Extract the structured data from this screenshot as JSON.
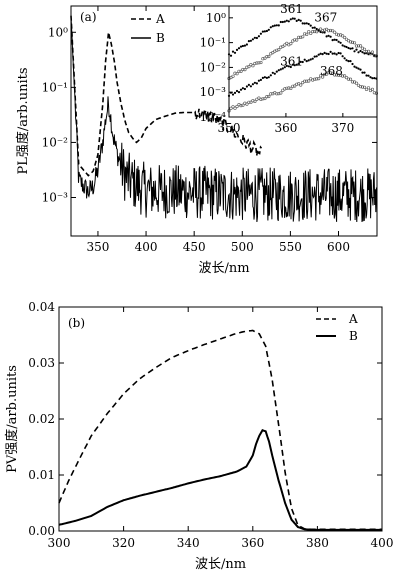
{
  "chart_data": [
    {
      "type": "line",
      "panel_label": "(a)",
      "xlabel": "波长/nm",
      "ylabel": "PL强度/arb.units",
      "xlim": [
        322,
        640
      ],
      "ylim": [
        0.0002,
        3
      ],
      "yscale": "log",
      "xticks": [
        350,
        400,
        450,
        500,
        550,
        600
      ],
      "yticks": [
        0.001,
        0.01,
        0.1,
        1
      ],
      "ytick_labels": [
        "10⁻³",
        "10⁻²",
        "10⁻¹",
        "10⁰"
      ],
      "legend_position": "top-left",
      "series": [
        {
          "name": "A",
          "style": "dashed",
          "x": [
            322,
            330,
            340,
            345,
            350,
            355,
            358,
            361,
            364,
            367,
            370,
            374,
            378,
            382,
            386,
            390,
            395,
            400,
            410,
            420,
            430,
            440,
            450,
            460,
            470,
            480,
            490,
            500,
            510,
            520
          ],
          "y": [
            2.0,
            0.004,
            0.0025,
            0.003,
            0.006,
            0.05,
            0.3,
            1.0,
            0.6,
            0.3,
            0.12,
            0.05,
            0.025,
            0.015,
            0.012,
            0.01,
            0.012,
            0.018,
            0.026,
            0.03,
            0.034,
            0.035,
            0.035,
            0.032,
            0.028,
            0.022,
            0.016,
            0.011,
            0.008,
            0.006
          ]
        },
        {
          "name": "B",
          "style": "solid-noisy",
          "x": [
            322,
            330,
            340,
            345,
            350,
            355,
            358,
            361,
            363,
            366,
            370,
            375,
            380,
            390,
            400,
            450,
            500,
            550,
            600,
            640
          ],
          "y": [
            2.0,
            0.002,
            0.0012,
            0.0015,
            0.003,
            0.01,
            0.025,
            0.05,
            0.03,
            0.012,
            0.006,
            0.003,
            0.002,
            0.0015,
            0.0012,
            0.0011,
            0.001,
            0.001,
            0.001,
            0.001
          ]
        }
      ],
      "inset": {
        "xlim": [
          350,
          376
        ],
        "ylim": [
          0.0001,
          3
        ],
        "yscale": "log",
        "xticks": [
          350,
          360,
          370
        ],
        "yticks": [
          0.0001,
          0.001,
          0.01,
          0.1,
          1
        ],
        "ytick_labels": [
          "10⁻⁴",
          "10⁻³",
          "10⁻²",
          "10⁻¹",
          "10⁰"
        ],
        "annotations": [
          {
            "text": "361",
            "x": 361,
            "y": 1.6
          },
          {
            "text": "367",
            "x": 367,
            "y": 0.7
          },
          {
            "text": "361",
            "x": 361,
            "y": 0.012
          },
          {
            "text": "368",
            "x": 368,
            "y": 0.005
          }
        ],
        "series": [
          {
            "style": "filled-dots",
            "x": [
              350,
              352,
              354,
              356,
              358,
              360,
              361,
              362,
              364,
              366,
              368,
              370,
              372,
              374,
              376
            ],
            "y": [
              0.03,
              0.06,
              0.12,
              0.25,
              0.45,
              0.75,
              0.85,
              0.8,
              0.55,
              0.3,
              0.15,
              0.08,
              0.05,
              0.035,
              0.03
            ]
          },
          {
            "style": "open-dots",
            "x": [
              350,
              352,
              354,
              356,
              358,
              360,
              362,
              364,
              366,
              367,
              368,
              370,
              372,
              374,
              376
            ],
            "y": [
              0.004,
              0.007,
              0.012,
              0.02,
              0.04,
              0.08,
              0.15,
              0.25,
              0.33,
              0.35,
              0.3,
              0.18,
              0.09,
              0.05,
              0.03
            ]
          },
          {
            "style": "filled-dots",
            "x": [
              350,
              352,
              354,
              356,
              358,
              360,
              362,
              364,
              366,
              367,
              368,
              369,
              370,
              372,
              374,
              376
            ],
            "y": [
              0.0008,
              0.0012,
              0.002,
              0.0035,
              0.006,
              0.01,
              0.015,
              0.022,
              0.032,
              0.038,
              0.04,
              0.037,
              0.03,
              0.012,
              0.005,
              0.0035
            ]
          },
          {
            "style": "open-dots",
            "x": [
              350,
              353,
              356,
              359,
              362,
              365,
              368,
              370,
              372,
              374,
              376
            ],
            "y": [
              0.0002,
              0.00035,
              0.0006,
              0.001,
              0.002,
              0.0035,
              0.006,
              0.005,
              0.0025,
              0.0015,
              0.001
            ]
          }
        ]
      }
    },
    {
      "type": "line",
      "panel_label": "(b)",
      "xlabel": "波长/nm",
      "ylabel": "PV强度/arb.units",
      "xlim": [
        300,
        400
      ],
      "ylim": [
        0,
        0.04
      ],
      "xticks": [
        300,
        320,
        340,
        360,
        380,
        400
      ],
      "yticks": [
        0,
        0.01,
        0.02,
        0.03,
        0.04
      ],
      "ytick_labels": [
        "0.00",
        "0.01",
        "0.02",
        "0.03",
        "0.04"
      ],
      "legend_position": "top-right",
      "series": [
        {
          "name": "A",
          "style": "dashed",
          "x": [
            300,
            303,
            306,
            310,
            315,
            320,
            325,
            330,
            335,
            340,
            345,
            350,
            355,
            358,
            360,
            362,
            364,
            366,
            368,
            370,
            372,
            374,
            376,
            378,
            382,
            390,
            400
          ],
          "y": [
            0.005,
            0.009,
            0.0125,
            0.017,
            0.021,
            0.0245,
            0.0272,
            0.0292,
            0.031,
            0.0322,
            0.0333,
            0.0343,
            0.0353,
            0.0357,
            0.0358,
            0.0352,
            0.033,
            0.027,
            0.019,
            0.0105,
            0.004,
            0.001,
            0.0004,
            0.0003,
            0.0003,
            0.0003,
            0.0003
          ]
        },
        {
          "name": "B",
          "style": "solid",
          "x": [
            300,
            305,
            310,
            315,
            320,
            325,
            330,
            335,
            340,
            345,
            350,
            355,
            358,
            360,
            361,
            362,
            363,
            364,
            365,
            366,
            368,
            370,
            372,
            374,
            376,
            380,
            390,
            400
          ],
          "y": [
            0.0011,
            0.0018,
            0.0027,
            0.0043,
            0.0055,
            0.0063,
            0.007,
            0.0077,
            0.0085,
            0.0092,
            0.0098,
            0.0106,
            0.0115,
            0.0135,
            0.0155,
            0.017,
            0.018,
            0.0178,
            0.016,
            0.0135,
            0.009,
            0.005,
            0.002,
            0.0007,
            0.0003,
            0.0002,
            0.0002,
            0.0002
          ]
        }
      ]
    }
  ]
}
